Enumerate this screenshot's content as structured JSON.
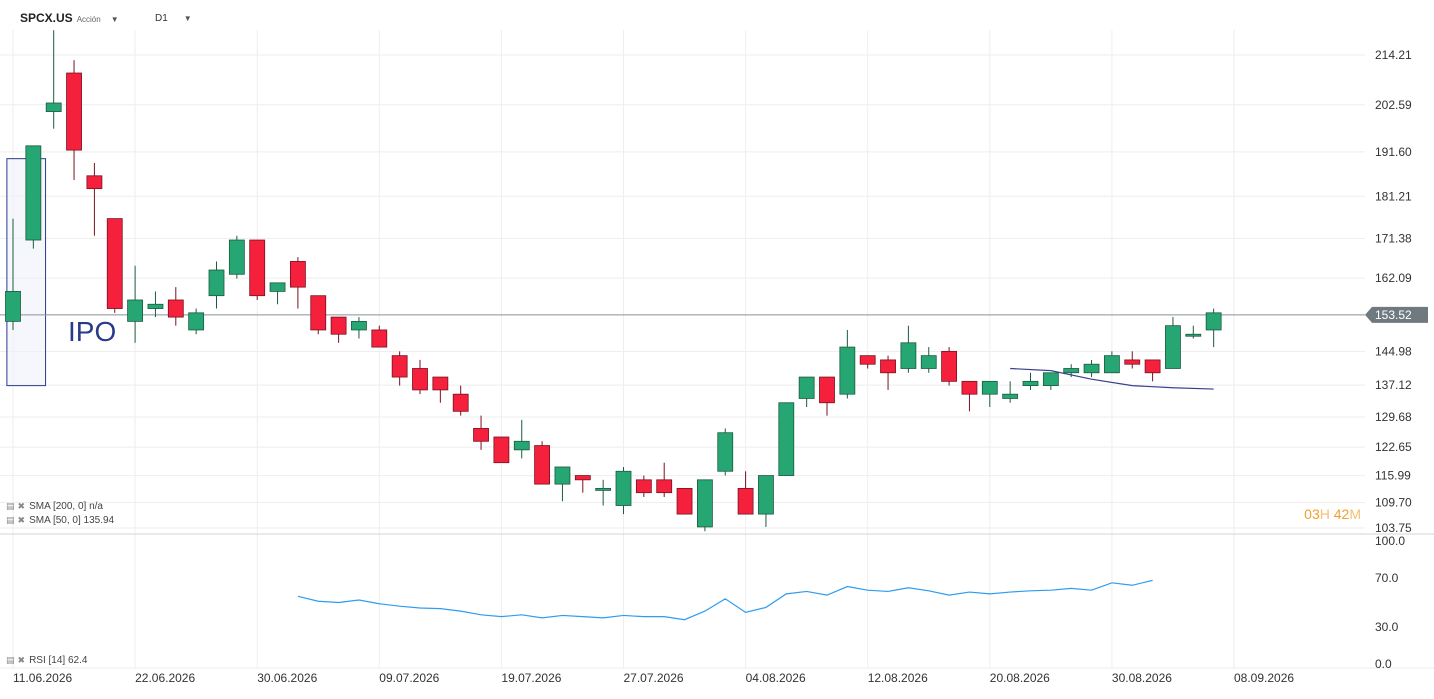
{
  "header": {
    "symbol": "SPCX.US",
    "symbol_type": "Acción",
    "timeframe": "D1"
  },
  "icons": {
    "dropdown": "chevron-down-icon",
    "settings": "indicator-settings-icon",
    "remove": "close-icon"
  },
  "colors": {
    "up": "#26a673",
    "down": "#f5213c",
    "sma50": "#3a3f8f",
    "rsi": "#2e9cf0",
    "ipo_box": "#2a3a8a",
    "countdown": "#f0a030",
    "price_tag": "#6f7a80"
  },
  "indicators": {
    "sma200": "SMA [200, 0] n/a",
    "sma50": "SMA [50, 0] 135.94",
    "rsi": "RSI [14] 62.4"
  },
  "countdown": {
    "hours": "03",
    "hours_unit": "H",
    "minutes": "42",
    "minutes_unit": "M"
  },
  "annotation": {
    "ipo": "IPO"
  },
  "chart_data": {
    "type": "candlestick",
    "current_price": "153.52",
    "price_ticks": [
      "214.21",
      "202.59",
      "191.60",
      "181.21",
      "171.38",
      "162.09",
      "153.52",
      "144.98",
      "137.12",
      "129.68",
      "122.65",
      "115.99",
      "109.70",
      "103.75"
    ],
    "price_tick_values": [
      214.21,
      202.59,
      191.6,
      181.21,
      171.38,
      162.09,
      153.52,
      144.98,
      137.12,
      129.68,
      122.65,
      115.99,
      109.7,
      103.75
    ],
    "x_ticks": [
      "11.06.2026",
      "22.06.2026",
      "30.06.2026",
      "09.07.2026",
      "19.07.2026",
      "27.07.2026",
      "04.08.2026",
      "12.08.2026",
      "20.08.2026",
      "30.08.2026",
      "08.09.2026"
    ],
    "x_tick_index": [
      0,
      6,
      12,
      18,
      24,
      30,
      36,
      42,
      48,
      54,
      60
    ],
    "candles": [
      {
        "o": 152,
        "h": 176,
        "l": 150,
        "c": 159
      },
      {
        "o": 171,
        "h": 193,
        "l": 169,
        "c": 193
      },
      {
        "o": 201,
        "h": 220,
        "l": 197,
        "c": 203
      },
      {
        "o": 210,
        "h": 213,
        "l": 185,
        "c": 192
      },
      {
        "o": 186,
        "h": 189,
        "l": 172,
        "c": 183
      },
      {
        "o": 176,
        "h": 176,
        "l": 154,
        "c": 155
      },
      {
        "o": 152,
        "h": 165,
        "l": 147,
        "c": 157
      },
      {
        "o": 155,
        "h": 159,
        "l": 153,
        "c": 156
      },
      {
        "o": 157,
        "h": 160,
        "l": 151,
        "c": 153
      },
      {
        "o": 150,
        "h": 155,
        "l": 149,
        "c": 154
      },
      {
        "o": 158,
        "h": 166,
        "l": 155,
        "c": 164
      },
      {
        "o": 163,
        "h": 172,
        "l": 162,
        "c": 171
      },
      {
        "o": 171,
        "h": 171,
        "l": 157,
        "c": 158
      },
      {
        "o": 159,
        "h": 161,
        "l": 156,
        "c": 161
      },
      {
        "o": 166,
        "h": 167,
        "l": 155,
        "c": 160
      },
      {
        "o": 158,
        "h": 158,
        "l": 149,
        "c": 150
      },
      {
        "o": 153,
        "h": 153,
        "l": 147,
        "c": 149
      },
      {
        "o": 150,
        "h": 153,
        "l": 148,
        "c": 152
      },
      {
        "o": 150,
        "h": 151,
        "l": 146,
        "c": 146
      },
      {
        "o": 144,
        "h": 145,
        "l": 137,
        "c": 139
      },
      {
        "o": 141,
        "h": 143,
        "l": 135,
        "c": 136
      },
      {
        "o": 139,
        "h": 139,
        "l": 133,
        "c": 136
      },
      {
        "o": 135,
        "h": 137,
        "l": 130,
        "c": 131
      },
      {
        "o": 127,
        "h": 130,
        "l": 122,
        "c": 124
      },
      {
        "o": 125,
        "h": 125,
        "l": 119,
        "c": 119
      },
      {
        "o": 122,
        "h": 129,
        "l": 120,
        "c": 124
      },
      {
        "o": 123,
        "h": 124,
        "l": 114,
        "c": 114
      },
      {
        "o": 114,
        "h": 118,
        "l": 110,
        "c": 118
      },
      {
        "o": 116,
        "h": 116,
        "l": 112,
        "c": 115
      },
      {
        "o": 113,
        "h": 115,
        "l": 109,
        "c": 113
      },
      {
        "o": 109,
        "h": 118,
        "l": 107,
        "c": 117
      },
      {
        "o": 115,
        "h": 116,
        "l": 111,
        "c": 112
      },
      {
        "o": 115,
        "h": 119,
        "l": 111,
        "c": 112
      },
      {
        "o": 113,
        "h": 113,
        "l": 107,
        "c": 107
      },
      {
        "o": 104,
        "h": 115,
        "l": 103,
        "c": 115
      },
      {
        "o": 117,
        "h": 127,
        "l": 116,
        "c": 126
      },
      {
        "o": 113,
        "h": 117,
        "l": 107,
        "c": 107
      },
      {
        "o": 107,
        "h": 116,
        "l": 104,
        "c": 116
      },
      {
        "o": 116,
        "h": 133,
        "l": 116,
        "c": 133
      },
      {
        "o": 134,
        "h": 139,
        "l": 132,
        "c": 139
      },
      {
        "o": 139,
        "h": 139,
        "l": 130,
        "c": 133
      },
      {
        "o": 135,
        "h": 150,
        "l": 134,
        "c": 146
      },
      {
        "o": 144,
        "h": 144,
        "l": 141,
        "c": 142
      },
      {
        "o": 143,
        "h": 144,
        "l": 136,
        "c": 140
      },
      {
        "o": 141,
        "h": 151,
        "l": 140,
        "c": 147
      },
      {
        "o": 141,
        "h": 146,
        "l": 140,
        "c": 144
      },
      {
        "o": 145,
        "h": 146,
        "l": 137,
        "c": 138
      },
      {
        "o": 138,
        "h": 138,
        "l": 131,
        "c": 135
      },
      {
        "o": 135,
        "h": 138,
        "l": 132,
        "c": 138
      },
      {
        "o": 134,
        "h": 138,
        "l": 133,
        "c": 135
      },
      {
        "o": 137,
        "h": 140,
        "l": 136,
        "c": 138
      },
      {
        "o": 137,
        "h": 140,
        "l": 136,
        "c": 140
      },
      {
        "o": 140,
        "h": 142,
        "l": 139,
        "c": 141
      },
      {
        "o": 140,
        "h": 143,
        "l": 139,
        "c": 142
      },
      {
        "o": 140,
        "h": 145,
        "l": 140,
        "c": 144
      },
      {
        "o": 143,
        "h": 145,
        "l": 141,
        "c": 142
      },
      {
        "o": 143,
        "h": 143,
        "l": 138,
        "c": 140
      },
      {
        "o": 141,
        "h": 153,
        "l": 141,
        "c": 151
      },
      {
        "o": 149,
        "h": 151,
        "l": 148,
        "c": 149
      },
      {
        "o": 150,
        "h": 155,
        "l": 146,
        "c": 154
      }
    ],
    "sma50": [
      {
        "i": 49,
        "v": 141
      },
      {
        "i": 51,
        "v": 140.5
      },
      {
        "i": 53,
        "v": 138.5
      },
      {
        "i": 55,
        "v": 137
      },
      {
        "i": 57,
        "v": 136.5
      },
      {
        "i": 59,
        "v": 136.2
      }
    ],
    "ipo_box": {
      "i_start": -0.3,
      "i_end": 1.6,
      "top": 190,
      "bottom": 137
    },
    "rsi": {
      "ticks": [
        "100.0",
        "70.0",
        "30.0",
        "0.0"
      ],
      "tick_values": [
        100,
        70,
        30,
        0
      ],
      "start_index": 14,
      "values": [
        55,
        51,
        50,
        52,
        49,
        47,
        45.5,
        45,
        43,
        40,
        38.5,
        40,
        37.5,
        39.5,
        38.5,
        37.5,
        39.5,
        38.5,
        38.5,
        36,
        43,
        53,
        42,
        46,
        57,
        59,
        56,
        63,
        60,
        59,
        62,
        59.5,
        56,
        58.5,
        57,
        58.5,
        59.5,
        60,
        61.5,
        60,
        66,
        64,
        68
      ]
    }
  }
}
